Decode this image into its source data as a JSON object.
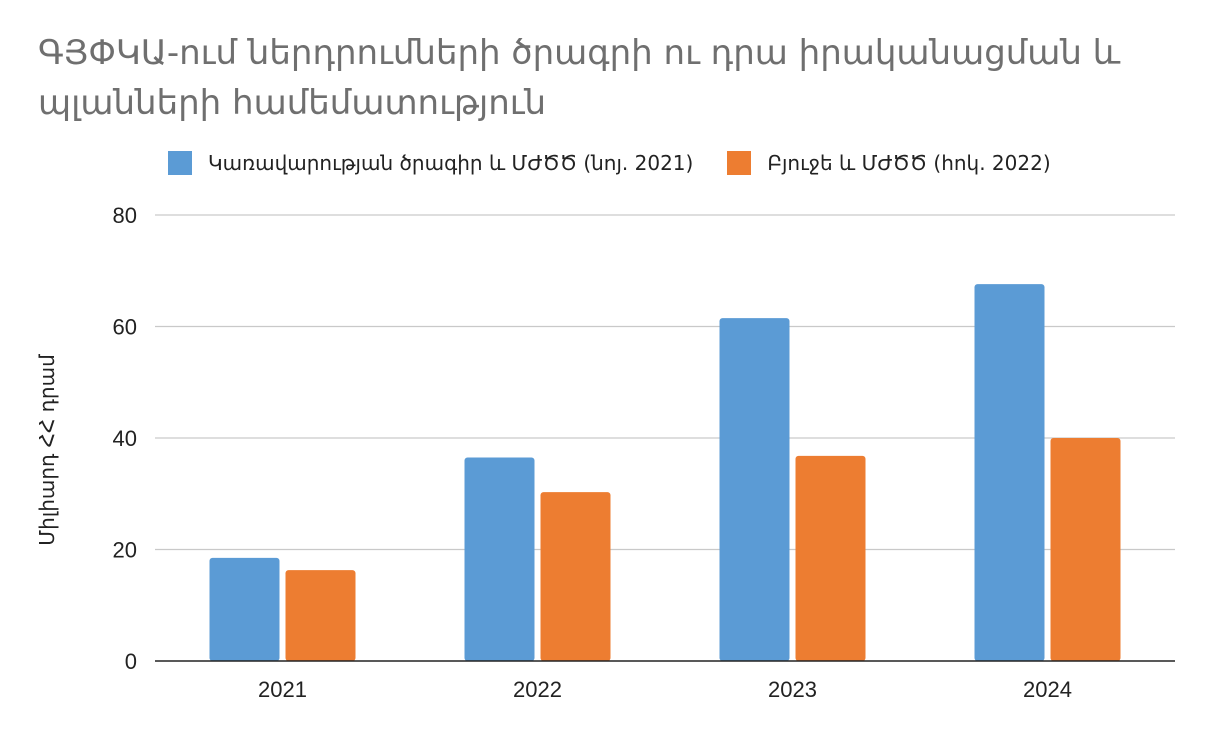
{
  "chart_data": {
    "type": "bar",
    "title": "ԳՅՓԿԱ-ում ներդրումների ծրագրի ու դրա իրականացման և պլանների համեմատություն",
    "xlabel": "",
    "ylabel": "Միլիարդ ՀՀ դրամ",
    "categories": [
      "2021",
      "2022",
      "2023",
      "2024"
    ],
    "series": [
      {
        "name": "Կառավարության ծրագիր և ՄԺԾԾ (նոյ. 2021)",
        "color": "#5b9bd5",
        "values": [
          18.5,
          36.5,
          61.5,
          67.6
        ]
      },
      {
        "name": "Բյուջե և ՄԺԾԾ (հոկ. 2022)",
        "color": "#ed7d31",
        "values": [
          16.3,
          30.3,
          36.8,
          40.0
        ]
      }
    ],
    "ylim": [
      0,
      80
    ],
    "yticks": [
      0,
      20,
      40,
      60,
      80
    ],
    "grid": true,
    "legend_position": "top"
  }
}
